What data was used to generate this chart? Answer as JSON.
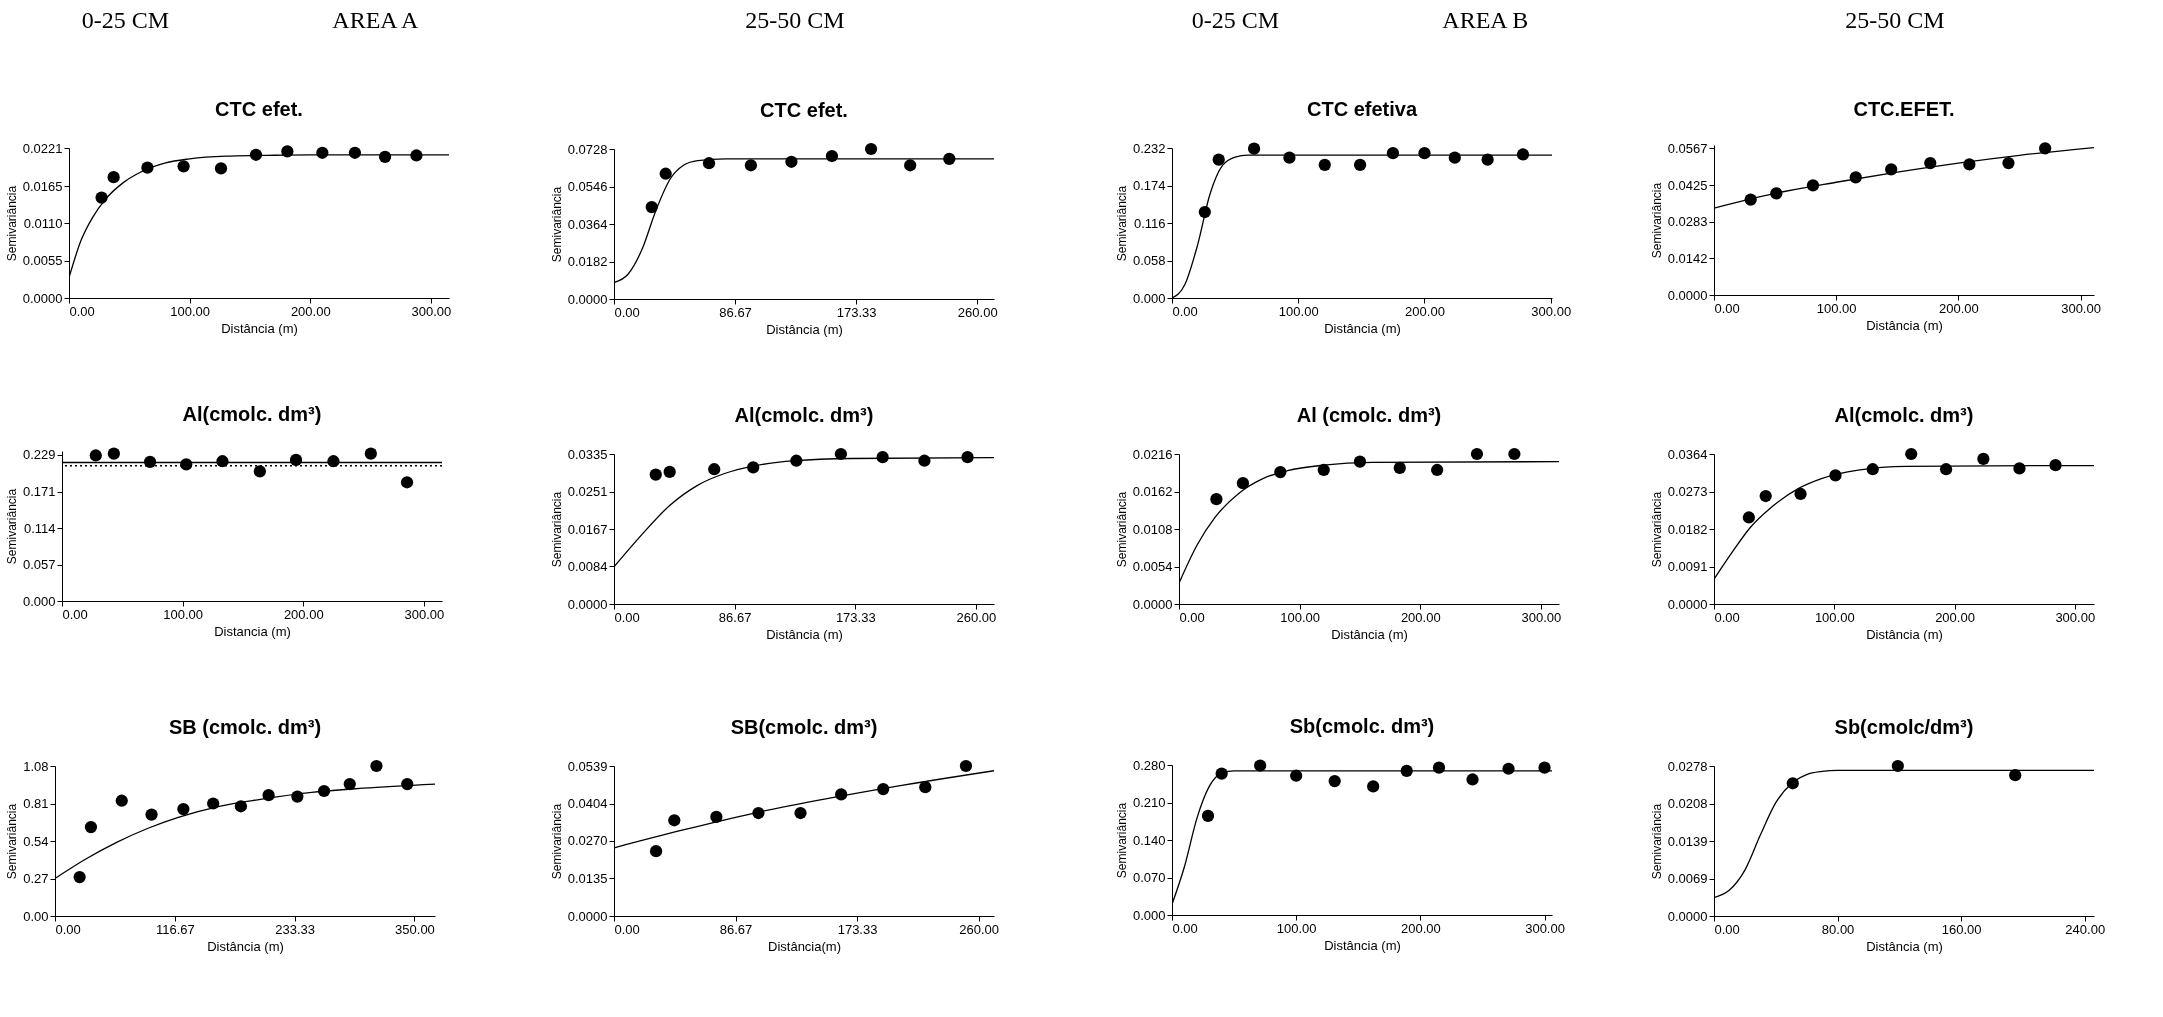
{
  "chart_data": [
    {
      "type": "scatter",
      "title": "CTC efet.",
      "annotations": [
        "0-25 CM",
        "AREA A"
      ],
      "xlabel": "Distância (m)",
      "ylabel": "Semivariância",
      "xlim": [
        0,
        315
      ],
      "ylim": [
        0,
        0.0221
      ],
      "xticks": [
        {
          "value": 0,
          "label": "0.00"
        },
        {
          "value": 100,
          "label": "100.00"
        },
        {
          "value": 200,
          "label": "200.00"
        },
        {
          "value": 300,
          "label": "300.00"
        }
      ],
      "yticks": [
        {
          "value": 0,
          "label": "0.0000"
        },
        {
          "value": 0.0055,
          "label": "0.0055"
        },
        {
          "value": 0.011,
          "label": "0.0110"
        },
        {
          "value": 0.0165,
          "label": "0.0165"
        },
        {
          "value": 0.0221,
          "label": "0.0221"
        }
      ],
      "series": [
        {
          "type": "line",
          "color": "#000000",
          "x": [
            0,
            10,
            20,
            30,
            45,
            60,
            80,
            100,
            130,
            160,
            200,
            250,
            315
          ],
          "values": [
            0.003,
            0.0085,
            0.012,
            0.0145,
            0.017,
            0.0186,
            0.0199,
            0.0205,
            0.0209,
            0.021,
            0.0211,
            0.0211,
            0.0211
          ]
        },
        {
          "type": "scatter",
          "color": "#000000",
          "marker": "circle",
          "x": [
            27,
            37,
            65,
            95,
            126,
            155,
            181,
            210,
            237,
            262,
            288
          ],
          "values": [
            0.0148,
            0.0178,
            0.0192,
            0.0194,
            0.0191,
            0.0211,
            0.0216,
            0.0214,
            0.0214,
            0.0208,
            0.021
          ]
        }
      ]
    },
    {
      "type": "scatter",
      "title": "CTC efet.",
      "annotations": [
        "25-50 CM"
      ],
      "xlabel": "Distância (m)",
      "ylabel": "Semivariância",
      "xlim": [
        0,
        272
      ],
      "ylim": [
        0,
        0.0728
      ],
      "xticks": [
        {
          "value": 0,
          "label": "0.00"
        },
        {
          "value": 86.67,
          "label": "86.67"
        },
        {
          "value": 173.33,
          "label": "173.33"
        },
        {
          "value": 260,
          "label": "260.00"
        }
      ],
      "yticks": [
        {
          "value": 0,
          "label": "0.0000"
        },
        {
          "value": 0.0182,
          "label": "0.0182"
        },
        {
          "value": 0.0364,
          "label": "0.0364"
        },
        {
          "value": 0.0546,
          "label": "0.0546"
        },
        {
          "value": 0.0728,
          "label": "0.0728"
        }
      ],
      "series": [
        {
          "type": "line",
          "color": "#000000",
          "x": [
            0,
            10,
            20,
            30,
            40,
            50,
            60,
            80,
            272
          ],
          "values": [
            0.008,
            0.012,
            0.024,
            0.043,
            0.058,
            0.065,
            0.0672,
            0.068,
            0.068
          ]
        },
        {
          "type": "scatter",
          "color": "#000000",
          "marker": "circle",
          "x": [
            27,
            37,
            68,
            98,
            127,
            156,
            184,
            212,
            240
          ],
          "values": [
            0.0446,
            0.0608,
            0.0659,
            0.0649,
            0.0666,
            0.0694,
            0.0728,
            0.0649,
            0.068
          ]
        }
      ]
    },
    {
      "type": "scatter",
      "title": "CTC efetiva",
      "annotations": [
        "0-25 CM",
        "AREA B"
      ],
      "xlabel": "Distância (m)",
      "ylabel": "Semivariância",
      "xlim": [
        0,
        301
      ],
      "ylim": [
        0,
        0.232
      ],
      "xticks": [
        {
          "value": 0,
          "label": "0.00"
        },
        {
          "value": 100,
          "label": "100.00"
        },
        {
          "value": 200,
          "label": "200.00"
        },
        {
          "value": 300,
          "label": "300.00"
        }
      ],
      "yticks": [
        {
          "value": 0,
          "label": "0.000"
        },
        {
          "value": 0.058,
          "label": "0.058"
        },
        {
          "value": 0.116,
          "label": "0.116"
        },
        {
          "value": 0.174,
          "label": "0.174"
        },
        {
          "value": 0.232,
          "label": "0.232"
        }
      ],
      "series": [
        {
          "type": "line",
          "color": "#000000",
          "x": [
            0,
            10,
            20,
            30,
            40,
            50,
            60,
            301
          ],
          "values": [
            0,
            0.02,
            0.08,
            0.16,
            0.205,
            0.218,
            0.221,
            0.221
          ]
        },
        {
          "type": "scatter",
          "color": "#000000",
          "marker": "circle",
          "x": [
            26,
            37,
            65,
            93,
            121,
            149,
            175,
            200,
            224,
            250,
            278
          ],
          "values": [
            0.133,
            0.214,
            0.231,
            0.217,
            0.206,
            0.206,
            0.224,
            0.224,
            0.217,
            0.214,
            0.222
          ]
        }
      ]
    },
    {
      "type": "scatter",
      "title": "CTC.EFET.",
      "annotations": [
        "25-50 CM"
      ],
      "xlabel": "Distância (m)",
      "ylabel": "Semivariância",
      "xlim": [
        0,
        311
      ],
      "ylim": [
        0,
        0.058
      ],
      "xticks": [
        {
          "value": 0,
          "label": "0.00"
        },
        {
          "value": 100,
          "label": "100.00"
        },
        {
          "value": 200,
          "label": "200.00"
        },
        {
          "value": 300,
          "label": "300.00"
        }
      ],
      "yticks": [
        {
          "value": 0,
          "label": "0.0000"
        },
        {
          "value": 0.0142,
          "label": "0.0142"
        },
        {
          "value": 0.0283,
          "label": "0.0283"
        },
        {
          "value": 0.0425,
          "label": "0.0425"
        },
        {
          "value": 0.0567,
          "label": "0.0567"
        }
      ],
      "series": [
        {
          "type": "line",
          "color": "#000000",
          "x": [
            0,
            50,
            100,
            150,
            200,
            250,
            311
          ],
          "values": [
            0.0336,
            0.0393,
            0.0436,
            0.0475,
            0.051,
            0.054,
            0.057
          ]
        },
        {
          "type": "scatter",
          "color": "#000000",
          "marker": "circle",
          "x": [
            30,
            51,
            81,
            116,
            145,
            177,
            209,
            241,
            271
          ],
          "values": [
            0.0369,
            0.0393,
            0.0424,
            0.0455,
            0.0486,
            0.051,
            0.0505,
            0.051,
            0.0567
          ]
        }
      ]
    },
    {
      "type": "scatter",
      "title": "Al(cmolc. dm³)",
      "xlabel": "Distancia (m)",
      "ylabel": "Semivariância",
      "xlim": [
        0,
        315
      ],
      "ylim": [
        0,
        0.235
      ],
      "xticks": [
        {
          "value": 0,
          "label": "0.00"
        },
        {
          "value": 100,
          "label": "100.00"
        },
        {
          "value": 200,
          "label": "200.00"
        },
        {
          "value": 300,
          "label": "300.00"
        }
      ],
      "yticks": [
        {
          "value": 0,
          "label": "0.000"
        },
        {
          "value": 0.057,
          "label": "0.057"
        },
        {
          "value": 0.114,
          "label": "0.114"
        },
        {
          "value": 0.171,
          "label": "0.171"
        },
        {
          "value": 0.229,
          "label": "0.229"
        }
      ],
      "ref_lines": [
        {
          "axis": "y",
          "value": 0.212,
          "color": "#000000",
          "line_style": "dotted"
        }
      ],
      "series": [
        {
          "type": "line",
          "color": "#000000",
          "x": [
            0,
            315
          ],
          "values": [
            0.217,
            0.217
          ]
        },
        {
          "type": "scatter",
          "color": "#000000",
          "marker": "circle",
          "x": [
            28,
            43,
            73,
            103,
            133,
            164,
            194,
            225,
            256,
            286
          ],
          "values": [
            0.228,
            0.231,
            0.218,
            0.214,
            0.219,
            0.203,
            0.221,
            0.219,
            0.231,
            0.186
          ]
        }
      ]
    },
    {
      "type": "scatter",
      "title": "Al(cmolc. dm³)",
      "xlabel": "Distância (m)",
      "ylabel": "Semivariância",
      "xlim": [
        0,
        273
      ],
      "ylim": [
        0,
        0.0335
      ],
      "xticks": [
        {
          "value": 0,
          "label": "0.00"
        },
        {
          "value": 86.67,
          "label": "86.67"
        },
        {
          "value": 173.33,
          "label": "173.33"
        },
        {
          "value": 260,
          "label": "260.00"
        }
      ],
      "yticks": [
        {
          "value": 0,
          "label": "0.0000"
        },
        {
          "value": 0.0084,
          "label": "0.0084"
        },
        {
          "value": 0.0167,
          "label": "0.0167"
        },
        {
          "value": 0.0251,
          "label": "0.0251"
        },
        {
          "value": 0.0335,
          "label": "0.0335"
        }
      ],
      "series": [
        {
          "type": "line",
          "color": "#000000",
          "x": [
            0,
            20,
            40,
            60,
            80,
            100,
            130,
            170,
            273
          ],
          "values": [
            0.0083,
            0.0155,
            0.022,
            0.0265,
            0.0292,
            0.0308,
            0.032,
            0.0325,
            0.0327
          ]
        },
        {
          "type": "scatter",
          "color": "#000000",
          "marker": "circle",
          "x": [
            30,
            40,
            72,
            100,
            131,
            163,
            193,
            223,
            254
          ],
          "values": [
            0.0289,
            0.0295,
            0.0301,
            0.0305,
            0.032,
            0.0335,
            0.0328,
            0.032,
            0.0328
          ]
        }
      ]
    },
    {
      "type": "scatter",
      "title": "Al (cmolc. dm³)",
      "xlabel": "Distância (m)",
      "ylabel": "Semivariância",
      "xlim": [
        0,
        315
      ],
      "ylim": [
        0,
        0.0216
      ],
      "xticks": [
        {
          "value": 0,
          "label": "0.00"
        },
        {
          "value": 100,
          "label": "100.00"
        },
        {
          "value": 200,
          "label": "200.00"
        },
        {
          "value": 300,
          "label": "300.00"
        }
      ],
      "yticks": [
        {
          "value": 0,
          "label": "0.0000"
        },
        {
          "value": 0.0054,
          "label": "0.0054"
        },
        {
          "value": 0.0108,
          "label": "0.0108"
        },
        {
          "value": 0.0162,
          "label": "0.0162"
        },
        {
          "value": 0.0216,
          "label": "0.0216"
        }
      ],
      "series": [
        {
          "type": "line",
          "color": "#000000",
          "x": [
            0,
            15,
            30,
            50,
            70,
            90,
            120,
            160,
            315
          ],
          "values": [
            0.003,
            0.0085,
            0.0125,
            0.016,
            0.0181,
            0.0192,
            0.02,
            0.0204,
            0.0205
          ]
        },
        {
          "type": "scatter",
          "color": "#000000",
          "marker": "circle",
          "x": [
            31,
            53,
            84,
            120,
            150,
            183,
            214,
            247,
            278
          ],
          "values": [
            0.0151,
            0.0174,
            0.019,
            0.0193,
            0.0205,
            0.0196,
            0.0193,
            0.0216,
            0.0216
          ]
        }
      ]
    },
    {
      "type": "scatter",
      "title": "Al(cmolc. dm³)",
      "xlabel": "Distância (m)",
      "ylabel": "Semivariância",
      "xlim": [
        0,
        316
      ],
      "ylim": [
        0,
        0.0364
      ],
      "xticks": [
        {
          "value": 0,
          "label": "0.00"
        },
        {
          "value": 100,
          "label": "100.00"
        },
        {
          "value": 200,
          "label": "200.00"
        },
        {
          "value": 300,
          "label": "300.00"
        }
      ],
      "yticks": [
        {
          "value": 0,
          "label": "0.0000"
        },
        {
          "value": 0.0091,
          "label": "0.0091"
        },
        {
          "value": 0.0182,
          "label": "0.0182"
        },
        {
          "value": 0.0273,
          "label": "0.0273"
        },
        {
          "value": 0.0364,
          "label": "0.0364"
        }
      ],
      "series": [
        {
          "type": "line",
          "color": "#000000",
          "x": [
            0,
            15,
            30,
            50,
            70,
            90,
            120,
            160,
            316
          ],
          "values": [
            0.006,
            0.0125,
            0.0185,
            0.024,
            0.028,
            0.0305,
            0.0325,
            0.0334,
            0.0336
          ]
        },
        {
          "type": "scatter",
          "color": "#000000",
          "marker": "circle",
          "x": [
            29,
            43,
            72,
            101,
            132,
            164,
            193,
            224,
            254,
            284
          ],
          "values": [
            0.021,
            0.0262,
            0.0267,
            0.0312,
            0.0327,
            0.0364,
            0.0327,
            0.0352,
            0.0329,
            0.0337
          ]
        }
      ]
    },
    {
      "type": "scatter",
      "title": "SB (cmolc. dm³)",
      "xlabel": "Distância (m)",
      "ylabel": "Semivariância",
      "xlim": [
        0,
        370
      ],
      "ylim": [
        0,
        1.08
      ],
      "xticks": [
        {
          "value": 0,
          "label": "0.00"
        },
        {
          "value": 116.67,
          "label": "116.67"
        },
        {
          "value": 233.33,
          "label": "233.33"
        },
        {
          "value": 350,
          "label": "350.00"
        }
      ],
      "yticks": [
        {
          "value": 0,
          "label": "0.00"
        },
        0.27,
        0.54,
        0.81,
        1.08
      ],
      "series": [
        {
          "type": "line",
          "color": "#000000",
          "x": [
            0,
            30,
            60,
            90,
            120,
            160,
            200,
            250,
            300,
            370
          ],
          "values": [
            0.27,
            0.41,
            0.53,
            0.63,
            0.71,
            0.79,
            0.84,
            0.89,
            0.92,
            0.95
          ]
        },
        {
          "type": "scatter",
          "color": "#000000",
          "marker": "circle",
          "x": [
            24,
            35,
            65,
            94,
            125,
            154,
            181,
            208,
            236,
            262,
            287,
            313,
            343
          ],
          "values": [
            0.28,
            0.64,
            0.83,
            0.73,
            0.77,
            0.81,
            0.79,
            0.87,
            0.86,
            0.9,
            0.95,
            1.08,
            0.95
          ]
        }
      ]
    },
    {
      "type": "scatter",
      "title": "SB(cmolc. dm³)",
      "xlabel": "Distância(m)",
      "ylabel": "Semivariância",
      "xlim": [
        0,
        271
      ],
      "ylim": [
        0,
        0.0539
      ],
      "xticks": [
        {
          "value": 0,
          "label": "0.00"
        },
        {
          "value": 86.67,
          "label": "86.67"
        },
        {
          "value": 173.33,
          "label": "173.33"
        },
        {
          "value": 260,
          "label": "260.00"
        }
      ],
      "yticks": [
        {
          "value": 0,
          "label": "0.0000"
        },
        {
          "value": 0.0135,
          "label": "0.0135"
        },
        {
          "value": 0.027,
          "label": "0.0270"
        },
        {
          "value": 0.0404,
          "label": "0.0404"
        },
        {
          "value": 0.0539,
          "label": "0.0539"
        }
      ],
      "series": [
        {
          "type": "line",
          "color": "#000000",
          "x": [
            0,
            50,
            100,
            150,
            200,
            271
          ],
          "values": [
            0.0245,
            0.031,
            0.037,
            0.042,
            0.0465,
            0.0522
          ]
        },
        {
          "type": "scatter",
          "color": "#000000",
          "marker": "circle",
          "x": [
            30,
            43,
            73,
            103,
            133,
            162,
            192,
            222,
            251
          ],
          "values": [
            0.0233,
            0.0344,
            0.0356,
            0.037,
            0.037,
            0.0437,
            0.0456,
            0.0463,
            0.0539
          ]
        }
      ]
    },
    {
      "type": "scatter",
      "title": "Sb(cmolc. dm³)",
      "xlabel": "Distância (m)",
      "ylabel": "Semivariância",
      "xlim": [
        0,
        306
      ],
      "ylim": [
        0,
        0.28
      ],
      "xticks": [
        {
          "value": 0,
          "label": "0.00"
        },
        {
          "value": 100,
          "label": "100.00"
        },
        {
          "value": 200,
          "label": "200.00"
        },
        {
          "value": 300,
          "label": "300.00"
        }
      ],
      "yticks": [
        {
          "value": 0,
          "label": "0.000"
        },
        {
          "value": 0.07,
          "label": "0.070"
        },
        {
          "value": 0.14,
          "label": "0.140"
        },
        {
          "value": 0.21,
          "label": "0.210"
        },
        {
          "value": 0.28,
          "label": "0.280"
        }
      ],
      "series": [
        {
          "type": "line",
          "color": "#000000",
          "x": [
            0,
            10,
            20,
            30,
            40,
            50,
            306
          ],
          "values": [
            0.02,
            0.09,
            0.18,
            0.24,
            0.265,
            0.269,
            0.269
          ]
        },
        {
          "type": "scatter",
          "color": "#000000",
          "marker": "circle",
          "x": [
            29,
            40,
            71,
            100,
            131,
            162,
            189,
            215,
            242,
            271,
            300
          ],
          "values": [
            0.185,
            0.264,
            0.279,
            0.26,
            0.25,
            0.24,
            0.269,
            0.275,
            0.253,
            0.273,
            0.275
          ]
        }
      ]
    },
    {
      "type": "scatter",
      "title": "Sb(cmolc/dm³)",
      "xlabel": "Distância (m)",
      "ylabel": "Semivariância",
      "xlim": [
        0,
        246
      ],
      "ylim": [
        0,
        0.0278
      ],
      "xticks": [
        {
          "value": 0,
          "label": "0.00"
        },
        {
          "value": 80,
          "label": "80.00"
        },
        {
          "value": 160,
          "label": "160.00"
        },
        {
          "value": 240,
          "label": "240.00"
        }
      ],
      "yticks": [
        {
          "value": 0,
          "label": "0.0000"
        },
        {
          "value": 0.0069,
          "label": "0.0069"
        },
        {
          "value": 0.0139,
          "label": "0.0139"
        },
        {
          "value": 0.0208,
          "label": "0.0208"
        },
        {
          "value": 0.0278,
          "label": "0.0278"
        }
      ],
      "series": [
        {
          "type": "line",
          "color": "#000000",
          "x": [
            0,
            10,
            20,
            30,
            40,
            50,
            60,
            70,
            80,
            246
          ],
          "values": [
            0.0034,
            0.0048,
            0.0085,
            0.015,
            0.021,
            0.0245,
            0.0262,
            0.0268,
            0.027,
            0.027
          ]
        },
        {
          "type": "scatter",
          "color": "#000000",
          "marker": "circle",
          "x": [
            51,
            119,
            195
          ],
          "values": [
            0.0246,
            0.0278,
            0.0261
          ]
        }
      ]
    }
  ]
}
